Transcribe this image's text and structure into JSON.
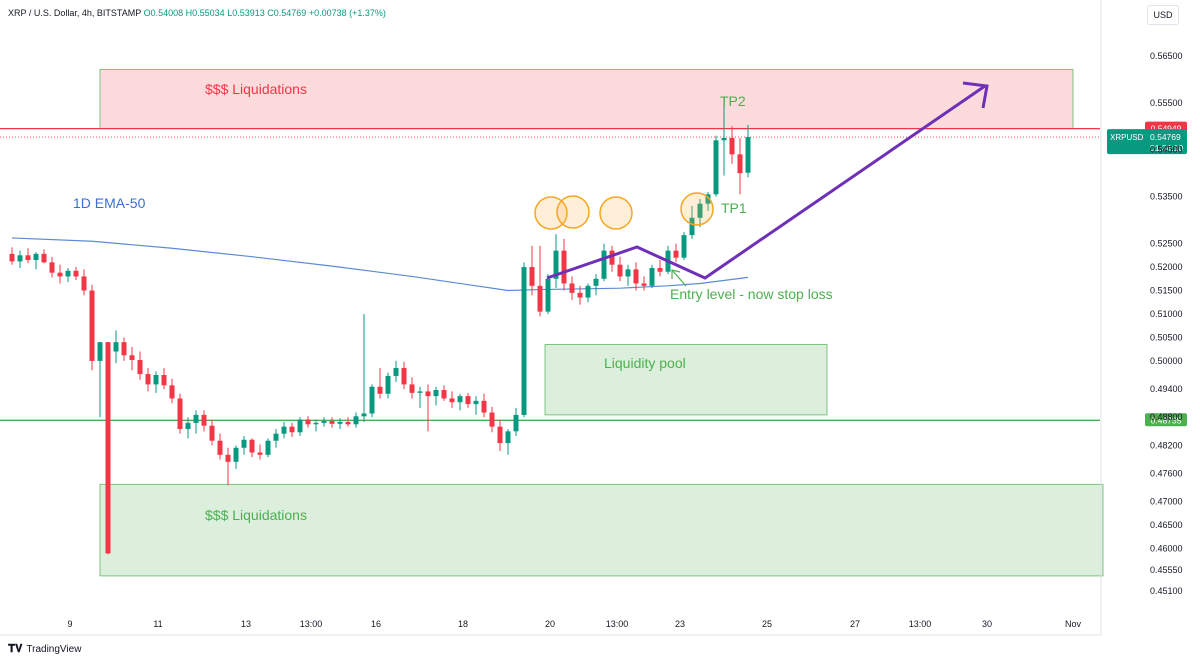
{
  "header": {
    "symbol": "XRP / U.S. Dollar, 4h, BITSTAMP",
    "open": "O0.54008",
    "high": "H0.55034",
    "low": "L0.53913",
    "close": "C0.54769",
    "change": "+0.00738 (+1.37%)"
  },
  "currency": "USD",
  "brand": "TradingView",
  "colors": {
    "up": "#089981",
    "down": "#f23645",
    "ema": "#5b8bd6",
    "arrow": "#6f30b8",
    "green_zone": "#4caf50",
    "red_zone": "#f23645"
  },
  "chart_data": {
    "type": "candlestick",
    "title": "",
    "ylim": [
      0.448,
      0.5705
    ],
    "y_ticks": [
      "0.56500",
      "0.55500",
      "0.54500",
      "0.53500",
      "0.52500",
      "0.52000",
      "0.51500",
      "0.51000",
      "0.50500",
      "0.50000",
      "0.49400",
      "0.48800",
      "0.48200",
      "0.47600",
      "0.47000",
      "0.46500",
      "0.46000",
      "0.45550",
      "0.45100"
    ],
    "x_ticks": [
      "9",
      "11",
      "13",
      "13:00",
      "16",
      "18",
      "20",
      "13:00",
      "23",
      "25",
      "27",
      "13:00",
      "30",
      "Nov"
    ],
    "candles": [
      {
        "o": 0.5228,
        "h": 0.5242,
        "l": 0.5205,
        "c": 0.5212
      },
      {
        "o": 0.5212,
        "h": 0.5235,
        "l": 0.5198,
        "c": 0.5225
      },
      {
        "o": 0.5225,
        "h": 0.524,
        "l": 0.5208,
        "c": 0.5215
      },
      {
        "o": 0.5215,
        "h": 0.5232,
        "l": 0.5195,
        "c": 0.5228
      },
      {
        "o": 0.5228,
        "h": 0.5238,
        "l": 0.5208,
        "c": 0.521
      },
      {
        "o": 0.521,
        "h": 0.5222,
        "l": 0.5178,
        "c": 0.5188
      },
      {
        "o": 0.5188,
        "h": 0.5205,
        "l": 0.5165,
        "c": 0.518
      },
      {
        "o": 0.518,
        "h": 0.5198,
        "l": 0.5168,
        "c": 0.5192
      },
      {
        "o": 0.5192,
        "h": 0.52,
        "l": 0.5172,
        "c": 0.518
      },
      {
        "o": 0.518,
        "h": 0.5195,
        "l": 0.514,
        "c": 0.515
      },
      {
        "o": 0.515,
        "h": 0.5162,
        "l": 0.498,
        "c": 0.5
      },
      {
        "o": 0.5,
        "h": 0.503,
        "l": 0.488,
        "c": 0.504
      },
      {
        "o": 0.504,
        "h": 0.504,
        "l": 0.4588,
        "c": 0.459
      },
      {
        "o": 0.502,
        "h": 0.5065,
        "l": 0.4995,
        "c": 0.504
      },
      {
        "o": 0.504,
        "h": 0.505,
        "l": 0.5,
        "c": 0.5012
      },
      {
        "o": 0.5012,
        "h": 0.503,
        "l": 0.498,
        "c": 0.5002
      },
      {
        "o": 0.5002,
        "h": 0.502,
        "l": 0.496,
        "c": 0.4972
      },
      {
        "o": 0.4972,
        "h": 0.4985,
        "l": 0.4935,
        "c": 0.495
      },
      {
        "o": 0.495,
        "h": 0.4978,
        "l": 0.4932,
        "c": 0.497
      },
      {
        "o": 0.497,
        "h": 0.4985,
        "l": 0.494,
        "c": 0.4948
      },
      {
        "o": 0.4948,
        "h": 0.4962,
        "l": 0.491,
        "c": 0.492
      },
      {
        "o": 0.492,
        "h": 0.493,
        "l": 0.4845,
        "c": 0.4855
      },
      {
        "o": 0.4855,
        "h": 0.488,
        "l": 0.4835,
        "c": 0.4868
      },
      {
        "o": 0.4868,
        "h": 0.4895,
        "l": 0.4845,
        "c": 0.4885
      },
      {
        "o": 0.4885,
        "h": 0.4895,
        "l": 0.485,
        "c": 0.4862
      },
      {
        "o": 0.4862,
        "h": 0.4875,
        "l": 0.482,
        "c": 0.483
      },
      {
        "o": 0.483,
        "h": 0.4845,
        "l": 0.479,
        "c": 0.48
      },
      {
        "o": 0.48,
        "h": 0.4815,
        "l": 0.4735,
        "c": 0.4785
      },
      {
        "o": 0.4785,
        "h": 0.482,
        "l": 0.477,
        "c": 0.4815
      },
      {
        "o": 0.4815,
        "h": 0.484,
        "l": 0.48,
        "c": 0.4832
      },
      {
        "o": 0.4832,
        "h": 0.4835,
        "l": 0.4795,
        "c": 0.4805
      },
      {
        "o": 0.4805,
        "h": 0.4822,
        "l": 0.479,
        "c": 0.48
      },
      {
        "o": 0.48,
        "h": 0.4835,
        "l": 0.4795,
        "c": 0.483
      },
      {
        "o": 0.483,
        "h": 0.4855,
        "l": 0.4815,
        "c": 0.4845
      },
      {
        "o": 0.4845,
        "h": 0.487,
        "l": 0.4835,
        "c": 0.486
      },
      {
        "o": 0.486,
        "h": 0.4868,
        "l": 0.4838,
        "c": 0.4848
      },
      {
        "o": 0.4848,
        "h": 0.488,
        "l": 0.484,
        "c": 0.4875
      },
      {
        "o": 0.4875,
        "h": 0.4882,
        "l": 0.4858,
        "c": 0.4865
      },
      {
        "o": 0.4865,
        "h": 0.4875,
        "l": 0.485,
        "c": 0.4868
      },
      {
        "o": 0.4868,
        "h": 0.488,
        "l": 0.486,
        "c": 0.4872
      },
      {
        "o": 0.4872,
        "h": 0.488,
        "l": 0.4858,
        "c": 0.4866
      },
      {
        "o": 0.4866,
        "h": 0.4878,
        "l": 0.4855,
        "c": 0.487
      },
      {
        "o": 0.487,
        "h": 0.488,
        "l": 0.486,
        "c": 0.4865
      },
      {
        "o": 0.4865,
        "h": 0.489,
        "l": 0.4858,
        "c": 0.4882
      },
      {
        "o": 0.4882,
        "h": 0.51,
        "l": 0.487,
        "c": 0.4888
      },
      {
        "o": 0.4888,
        "h": 0.495,
        "l": 0.488,
        "c": 0.4945
      },
      {
        "o": 0.4945,
        "h": 0.4985,
        "l": 0.492,
        "c": 0.493
      },
      {
        "o": 0.493,
        "h": 0.4975,
        "l": 0.492,
        "c": 0.4968
      },
      {
        "o": 0.4968,
        "h": 0.5,
        "l": 0.4955,
        "c": 0.4985
      },
      {
        "o": 0.4985,
        "h": 0.4998,
        "l": 0.494,
        "c": 0.495
      },
      {
        "o": 0.495,
        "h": 0.4965,
        "l": 0.492,
        "c": 0.4932
      },
      {
        "o": 0.4932,
        "h": 0.4945,
        "l": 0.49,
        "c": 0.4935
      },
      {
        "o": 0.4935,
        "h": 0.495,
        "l": 0.485,
        "c": 0.4925
      },
      {
        "o": 0.4925,
        "h": 0.4945,
        "l": 0.4905,
        "c": 0.4938
      },
      {
        "o": 0.4938,
        "h": 0.4948,
        "l": 0.4915,
        "c": 0.492
      },
      {
        "o": 0.492,
        "h": 0.4935,
        "l": 0.49,
        "c": 0.4912
      },
      {
        "o": 0.4912,
        "h": 0.493,
        "l": 0.4895,
        "c": 0.4925
      },
      {
        "o": 0.4925,
        "h": 0.4932,
        "l": 0.49,
        "c": 0.4908
      },
      {
        "o": 0.4908,
        "h": 0.4925,
        "l": 0.4885,
        "c": 0.4915
      },
      {
        "o": 0.4915,
        "h": 0.493,
        "l": 0.488,
        "c": 0.489
      },
      {
        "o": 0.489,
        "h": 0.4902,
        "l": 0.4848,
        "c": 0.486
      },
      {
        "o": 0.486,
        "h": 0.4875,
        "l": 0.4808,
        "c": 0.4825
      },
      {
        "o": 0.4825,
        "h": 0.4855,
        "l": 0.48,
        "c": 0.485
      },
      {
        "o": 0.485,
        "h": 0.49,
        "l": 0.484,
        "c": 0.4885
      },
      {
        "o": 0.4885,
        "h": 0.521,
        "l": 0.488,
        "c": 0.52
      },
      {
        "o": 0.52,
        "h": 0.5245,
        "l": 0.514,
        "c": 0.516
      },
      {
        "o": 0.516,
        "h": 0.5245,
        "l": 0.5095,
        "c": 0.5105
      },
      {
        "o": 0.5105,
        "h": 0.5185,
        "l": 0.51,
        "c": 0.5175
      },
      {
        "o": 0.5175,
        "h": 0.527,
        "l": 0.5155,
        "c": 0.5235
      },
      {
        "o": 0.5235,
        "h": 0.526,
        "l": 0.515,
        "c": 0.5165
      },
      {
        "o": 0.5165,
        "h": 0.518,
        "l": 0.513,
        "c": 0.5145
      },
      {
        "o": 0.5145,
        "h": 0.516,
        "l": 0.512,
        "c": 0.5135
      },
      {
        "o": 0.5135,
        "h": 0.5165,
        "l": 0.5125,
        "c": 0.516
      },
      {
        "o": 0.516,
        "h": 0.5185,
        "l": 0.514,
        "c": 0.5175
      },
      {
        "o": 0.5175,
        "h": 0.525,
        "l": 0.517,
        "c": 0.5235
      },
      {
        "o": 0.5235,
        "h": 0.5245,
        "l": 0.519,
        "c": 0.5205
      },
      {
        "o": 0.5205,
        "h": 0.5222,
        "l": 0.517,
        "c": 0.518
      },
      {
        "o": 0.518,
        "h": 0.5205,
        "l": 0.516,
        "c": 0.5195
      },
      {
        "o": 0.5195,
        "h": 0.521,
        "l": 0.515,
        "c": 0.5165
      },
      {
        "o": 0.5165,
        "h": 0.518,
        "l": 0.515,
        "c": 0.516
      },
      {
        "o": 0.516,
        "h": 0.5205,
        "l": 0.5155,
        "c": 0.5198
      },
      {
        "o": 0.5198,
        "h": 0.5215,
        "l": 0.518,
        "c": 0.519
      },
      {
        "o": 0.519,
        "h": 0.5245,
        "l": 0.5185,
        "c": 0.5235
      },
      {
        "o": 0.5235,
        "h": 0.525,
        "l": 0.521,
        "c": 0.522
      },
      {
        "o": 0.522,
        "h": 0.5275,
        "l": 0.5215,
        "c": 0.5268
      },
      {
        "o": 0.5268,
        "h": 0.533,
        "l": 0.526,
        "c": 0.5305
      },
      {
        "o": 0.5305,
        "h": 0.5345,
        "l": 0.5285,
        "c": 0.5335
      },
      {
        "o": 0.5335,
        "h": 0.536,
        "l": 0.532,
        "c": 0.5355
      },
      {
        "o": 0.5355,
        "h": 0.548,
        "l": 0.535,
        "c": 0.547
      },
      {
        "o": 0.547,
        "h": 0.556,
        "l": 0.5395,
        "c": 0.5475
      },
      {
        "o": 0.5475,
        "h": 0.55,
        "l": 0.542,
        "c": 0.544
      },
      {
        "o": 0.544,
        "h": 0.5475,
        "l": 0.5355,
        "c": 0.54
      },
      {
        "o": 0.5401,
        "h": 0.5503,
        "l": 0.5391,
        "c": 0.5477
      }
    ],
    "ema_50": [
      {
        "i": 0,
        "v": 0.5262
      },
      {
        "i": 10,
        "v": 0.5255
      },
      {
        "i": 20,
        "v": 0.524
      },
      {
        "i": 30,
        "v": 0.5222
      },
      {
        "i": 40,
        "v": 0.5202
      },
      {
        "i": 50,
        "v": 0.518
      },
      {
        "i": 58,
        "v": 0.516
      },
      {
        "i": 62,
        "v": 0.515
      },
      {
        "i": 66,
        "v": 0.5152
      },
      {
        "i": 76,
        "v": 0.5155
      },
      {
        "i": 82,
        "v": 0.516
      },
      {
        "i": 86,
        "v": 0.5165
      },
      {
        "i": 92,
        "v": 0.5178
      }
    ],
    "price_levels": [
      {
        "value": 0.54949,
        "label": "0.54949",
        "color": "#f23645"
      },
      {
        "value": 0.48735,
        "label": "0.48735",
        "color": "#4caf50"
      }
    ],
    "last_price": {
      "symbol": "XRPUSD",
      "value": "0.54769",
      "countdown": "01:34:10"
    },
    "annotations": {
      "ema_label": "1D EMA-50",
      "top_zone": "$$$ Liquidations",
      "bottom_zone": "$$$ Liquidations",
      "pool": "Liquidity pool",
      "tp1": "TP1",
      "tp2": "TP2",
      "entry": "Entry level - now stop loss"
    }
  }
}
